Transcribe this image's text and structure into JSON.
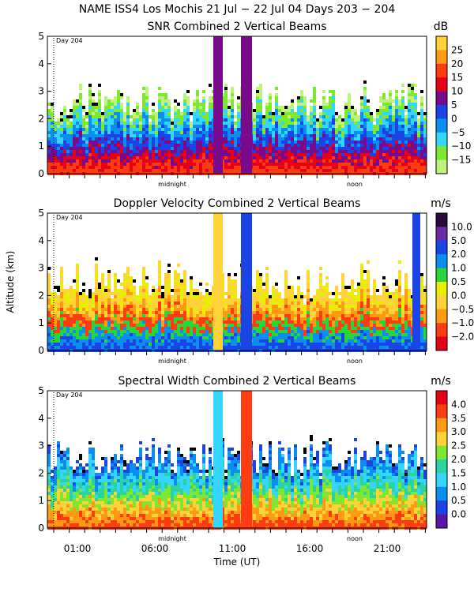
{
  "header": {
    "title": "NAME ISS4 Los Mochis  21 Jul − 22 Jul 04 Days 203 − 204"
  },
  "chart_data": [
    {
      "type": "heatmap",
      "title": "SNR Combined 2 Vertical Beams",
      "units": "dB",
      "ylim": [
        0,
        5
      ],
      "yticks": [
        "0",
        "1",
        "2",
        "3",
        "4",
        "5"
      ],
      "colorbar": {
        "labels": [
          "25",
          "20",
          "15",
          "10",
          "5",
          "0",
          "−5",
          "−10",
          "−15"
        ],
        "colors": [
          "#ffd23a",
          "#ff9a12",
          "#ff3b12",
          "#e80018",
          "#7a0a8c",
          "#1a44e6",
          "#0a8ef0",
          "#34d6ff",
          "#7ee830",
          "#bff27a"
        ]
      },
      "annotations": [
        "Day 204",
        "midnight",
        "noon"
      ]
    },
    {
      "type": "heatmap",
      "title": "Doppler Velocity Combined 2 Vertical Beams",
      "units": "m/s",
      "ylabel": "Altitude (km)",
      "ylim": [
        0,
        5
      ],
      "yticks": [
        "0",
        "1",
        "2",
        "3",
        "4",
        "5"
      ],
      "colorbar": {
        "labels": [
          "10.0",
          "5.0",
          "2.0",
          "1.0",
          "0.5",
          "0.0",
          "−0.5",
          "−1.0",
          "−2.0"
        ],
        "colors": [
          "#2a0a3a",
          "#6a2aa6",
          "#1a44e6",
          "#0a8ef0",
          "#2ad43a",
          "#e6f000",
          "#ffd23a",
          "#ff9a12",
          "#ff3b12",
          "#e80018"
        ]
      },
      "annotations": [
        "Day 204",
        "midnight",
        "noon"
      ]
    },
    {
      "type": "heatmap",
      "title": "Spectral Width Combined 2 Vertical Beams",
      "units": "m/s",
      "xlabel": "Time (UT)",
      "xticks": [
        "01:00",
        "06:00",
        "11:00",
        "16:00",
        "21:00"
      ],
      "ylim": [
        0,
        5
      ],
      "yticks": [
        "0",
        "1",
        "2",
        "3",
        "4",
        "5"
      ],
      "colorbar": {
        "labels": [
          "4.0",
          "3.5",
          "3.0",
          "2.5",
          "2.0",
          "1.5",
          "1.0",
          "0.5",
          "0.0"
        ],
        "colors": [
          "#e80018",
          "#ff3b12",
          "#ff9a12",
          "#ffd23a",
          "#7ee830",
          "#2ad4a0",
          "#34d6ff",
          "#0a8ef0",
          "#1a44e6",
          "#5a16a6"
        ]
      },
      "annotations": [
        "Day 204",
        "midnight",
        "noon"
      ]
    }
  ]
}
